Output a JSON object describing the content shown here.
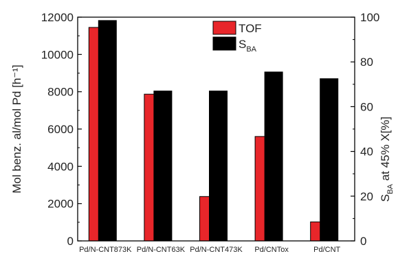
{
  "chart_data": {
    "type": "bar",
    "categories": [
      "Pd/N-CNT873K",
      "Pd/N-CNT63K",
      "Pd/N-CNT473K",
      "Pd/CNTox",
      "Pd/CNT"
    ],
    "series": [
      {
        "name": "TOF",
        "axis": "left",
        "color": "#e8262a",
        "values": [
          11450,
          7870,
          2380,
          5600,
          1020
        ]
      },
      {
        "name": "S",
        "name_sub": "BA",
        "axis": "right",
        "color": "#000000",
        "values": [
          98.5,
          67,
          67,
          75.5,
          72.5
        ]
      }
    ],
    "ylabel_left": "Mol benz. al/mol Pd [h⁻¹]",
    "ylabel_right": "S",
    "ylabel_right_sub": "BA",
    "ylabel_right_rest": " at 45% X[%]",
    "ylim_left": [
      0,
      12000
    ],
    "ylim_right": [
      0,
      100
    ],
    "yticks_left": [
      "0",
      "2000",
      "4000",
      "6000",
      "8000",
      "10000",
      "12000"
    ],
    "yticks_right": [
      "0",
      "20",
      "40",
      "60",
      "80",
      "100"
    ],
    "legend_position": "top-center",
    "grid": false
  }
}
